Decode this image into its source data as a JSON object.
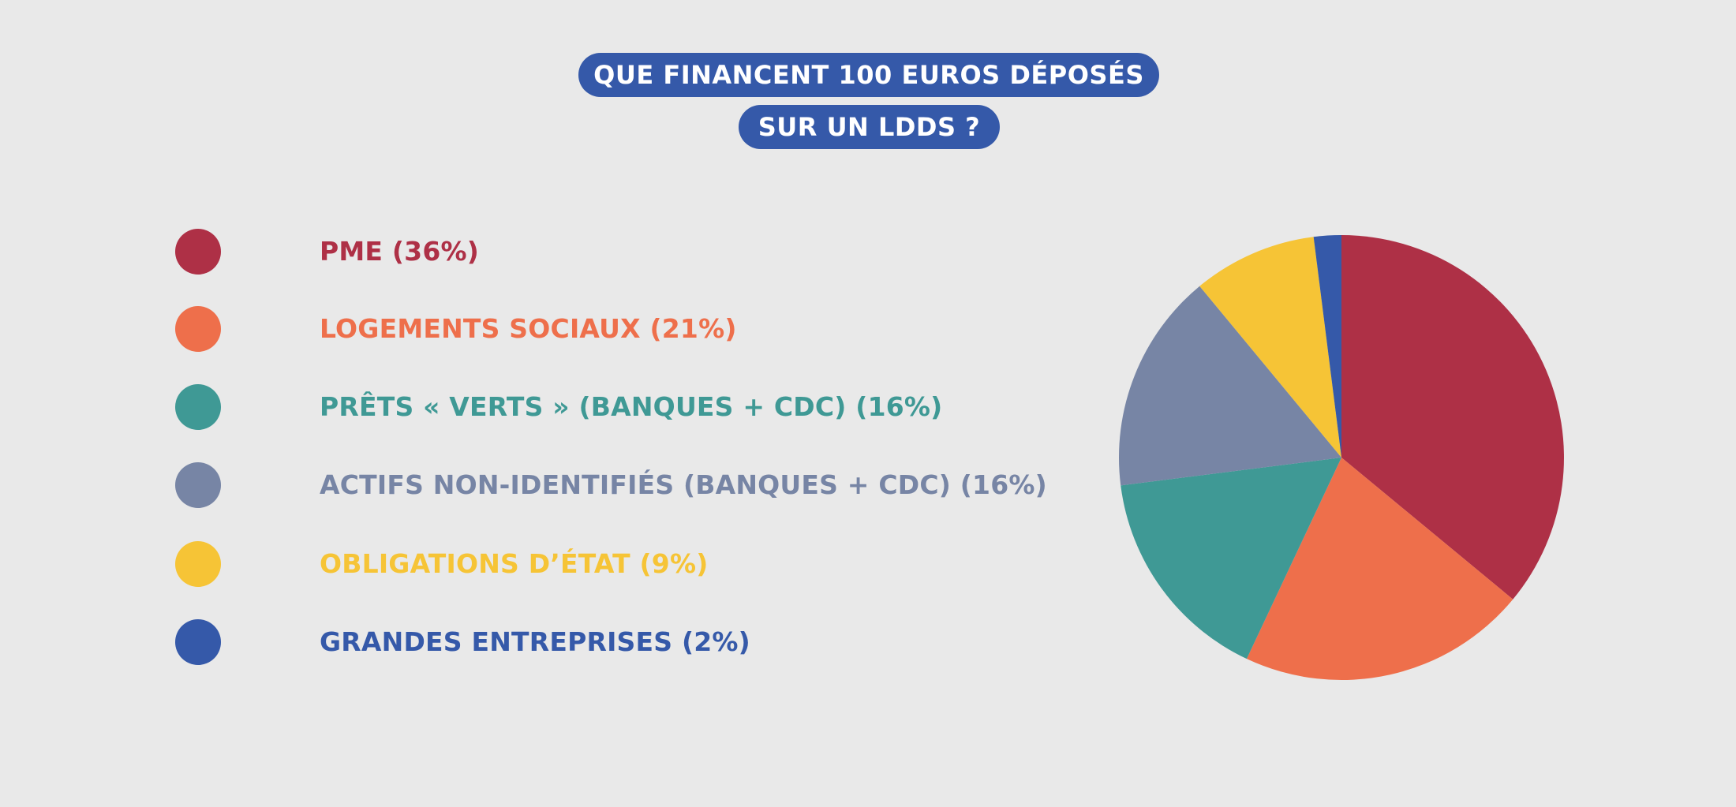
{
  "title": {
    "line1": "QUE FINANCENT 100 EUROS DÉPOSÉS",
    "line2": "SUR UN LDDS ?"
  },
  "chart_data": {
    "type": "pie",
    "title": "QUE FINANCENT 100 EUROS DÉPOSÉS SUR UN LDDS ?",
    "legend_placement": "left",
    "slices": [
      {
        "label": "PME",
        "pct_label": "(36%)",
        "value": 36,
        "color": "#ae3046"
      },
      {
        "label": "LOGEMENTS SOCIAUX",
        "pct_label": "(21%)",
        "value": 21,
        "color": "#ee6f4b"
      },
      {
        "label": "PRÊTS « VERTS » (BANQUES + CDC)",
        "pct_label": "(16%)",
        "value": 16,
        "color": "#3f9995"
      },
      {
        "label": "ACTIFS NON-IDENTIFIÉS (BANQUES + CDC)",
        "pct_label": "(16%)",
        "value": 16,
        "color": "#7785a5"
      },
      {
        "label": "OBLIGATIONS D’ÉTAT",
        "pct_label": "(9%)",
        "value": 9,
        "color": "#f6c436"
      },
      {
        "label": "GRANDES ENTREPRISES",
        "pct_label": "(2%)",
        "value": 2,
        "color": "#3559a9"
      }
    ]
  }
}
